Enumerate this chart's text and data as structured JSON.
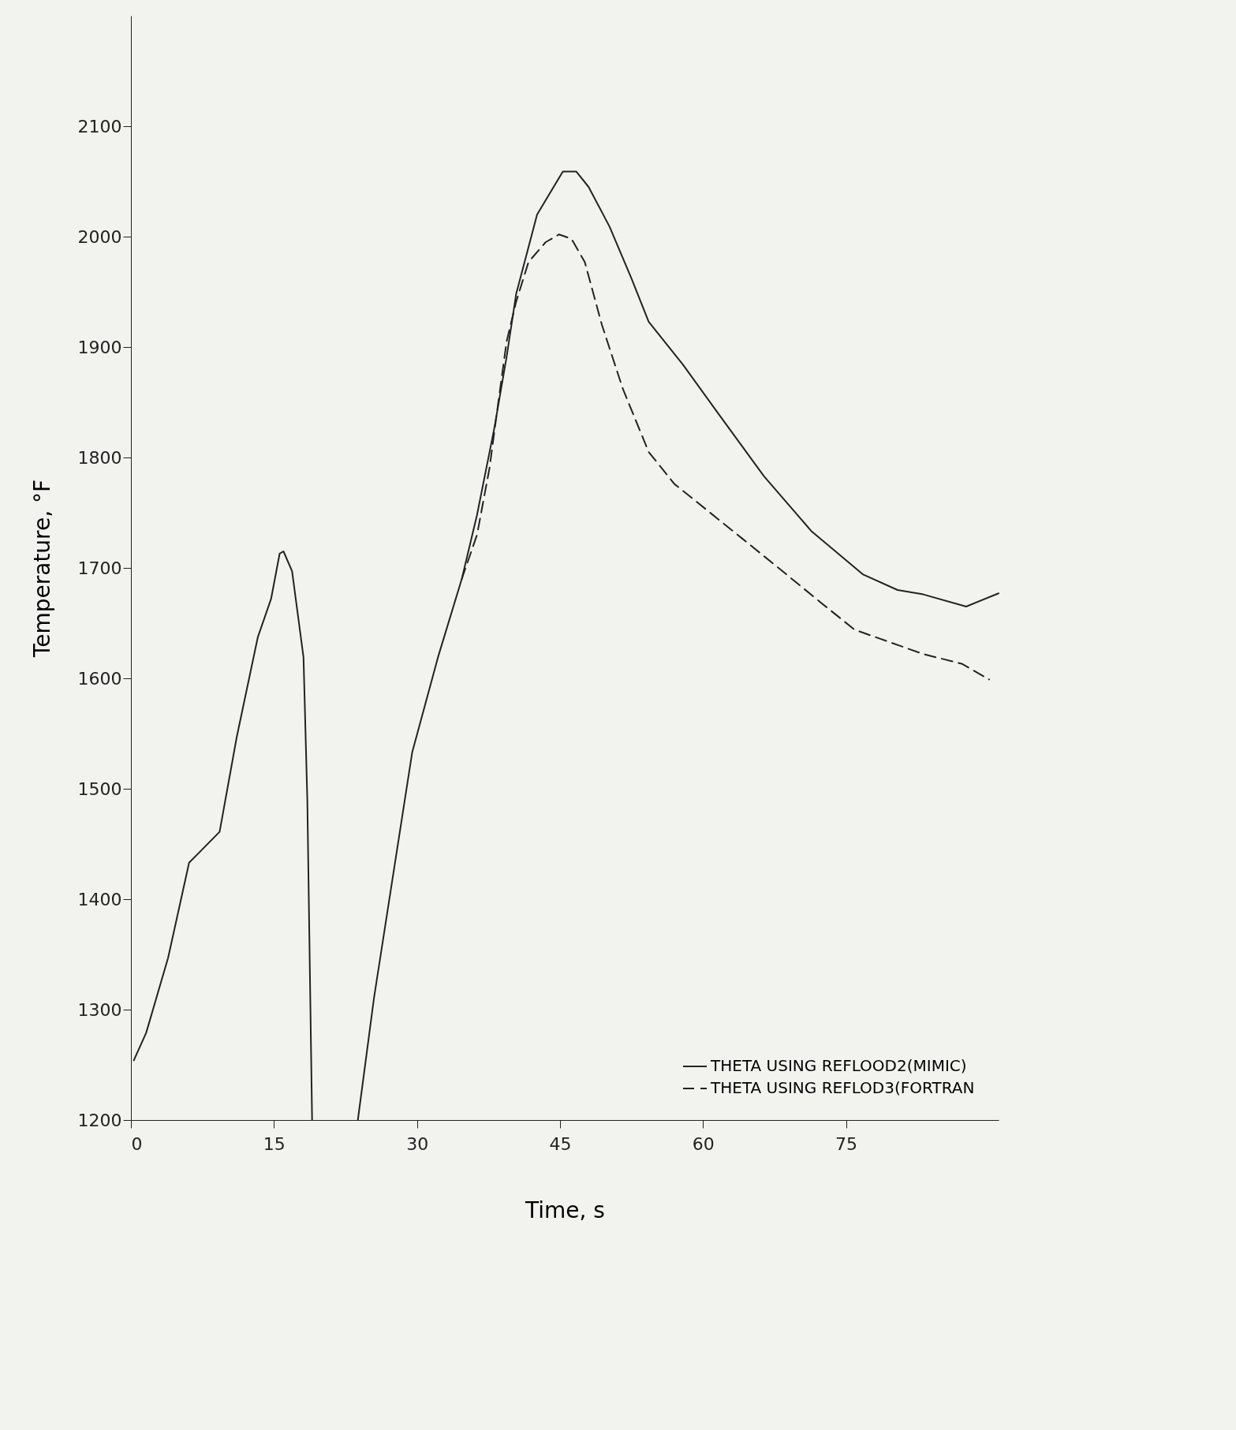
{
  "chart_data": {
    "type": "line",
    "xlabel": "Time, s",
    "ylabel": "Temperature, °F",
    "xlim": [
      0,
      91
    ],
    "xticks": [
      0,
      15,
      30,
      45,
      60,
      75
    ],
    "ylim": [
      1200,
      2200
    ],
    "yticks": [
      1200,
      1300,
      1400,
      1500,
      1600,
      1700,
      1800,
      1900,
      2000,
      2100
    ],
    "grid": false,
    "legend": "bottom right",
    "marker": "none",
    "series": [
      {
        "name": "THETA USING REFLOOD2(MIMIC)",
        "color": "#222222",
        "line_style": "solid",
        "x": [
          0.3,
          1.6,
          3.9,
          6.1,
          9.3,
          11.1,
          13.3,
          14.7,
          15.6,
          16,
          16.9,
          18.1,
          18.5,
          19,
          21,
          23.8,
          25.5,
          27.3,
          29.5,
          32.2,
          34.7,
          36.3,
          38.1,
          39.4,
          40.4,
          42.6,
          45.3,
          46.7,
          48,
          50.2,
          52.5,
          54.3,
          57.9,
          61.5,
          66.4,
          71.4,
          76.8,
          80.4,
          83.1,
          87.6,
          91
        ],
        "values": [
          1254,
          1279,
          1347,
          1433,
          1461,
          1547,
          1637,
          1672,
          1713,
          1715,
          1697,
          1619,
          1490,
          1200,
          null,
          1200,
          1311,
          1411,
          1533,
          1619,
          1690,
          1748,
          1826,
          1891,
          1948,
          2020,
          2059,
          2059,
          2045,
          2009,
          1962,
          1923,
          1884,
          1841,
          1783,
          1733,
          1694,
          1680,
          1676,
          1665,
          1677
        ]
      },
      {
        "name": "THETA USING REFLOD3(FORTRAN",
        "color": "#222222",
        "line_style": "dashed",
        "x": [
          34.7,
          36.3,
          37.6,
          38.5,
          39.4,
          40.4,
          41.7,
          43.5,
          44.9,
          46.2,
          47.6,
          49.4,
          51.6,
          54.3,
          57,
          60.6,
          64.2,
          68.2,
          72.3,
          75.9,
          79.5,
          83.1,
          87.2,
          90
        ],
        "values": [
          1690,
          1730,
          1790,
          1848,
          1905,
          1941,
          1977,
          1995,
          2002,
          1998,
          1977,
          1920,
          1862,
          1805,
          1776,
          1751,
          1726,
          1698,
          1669,
          1644,
          1633,
          1622,
          1613,
          1599
        ]
      }
    ]
  }
}
